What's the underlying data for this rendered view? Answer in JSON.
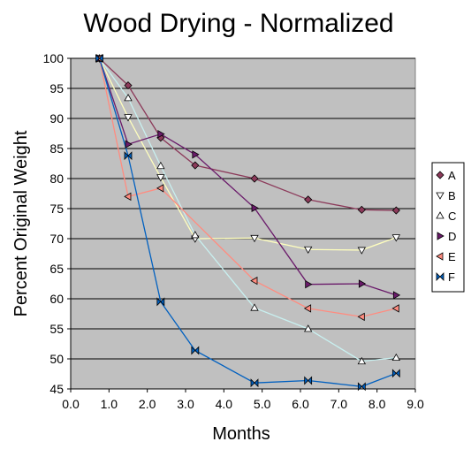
{
  "chart_data": {
    "type": "line",
    "title": "Wood Drying - Normalized",
    "xlabel": "Months",
    "ylabel": "Percent Original Weight",
    "xlim": [
      0.0,
      9.0
    ],
    "ylim": [
      45,
      100
    ],
    "x_ticks": [
      "0.0",
      "1.0",
      "2.0",
      "3.0",
      "4.0",
      "5.0",
      "6.0",
      "7.0",
      "8.0",
      "9.0"
    ],
    "y_ticks": [
      "45",
      "50",
      "55",
      "60",
      "65",
      "70",
      "75",
      "80",
      "85",
      "90",
      "95",
      "100"
    ],
    "grid": "horizontal",
    "plot_background": "#c0c0c0",
    "legend_position": "right",
    "series": [
      {
        "name": "A",
        "color": "#8c3a5a",
        "marker": "diamond",
        "x": [
          0.75,
          1.5,
          2.35,
          3.25,
          4.8,
          6.2,
          7.6,
          8.5
        ],
        "y": [
          100,
          95.5,
          86.8,
          82.2,
          80.0,
          76.5,
          74.8,
          74.7
        ]
      },
      {
        "name": "B",
        "color": "#ffffbe",
        "marker": "triangle-down",
        "x": [
          0.75,
          1.5,
          2.35,
          3.25,
          4.8,
          6.2,
          7.6,
          8.5
        ],
        "y": [
          100,
          90.2,
          80.2,
          70.0,
          70.1,
          68.2,
          68.1,
          70.2
        ]
      },
      {
        "name": "C",
        "color": "#c8f0f0",
        "marker": "triangle-up",
        "x": [
          0.75,
          1.5,
          2.35,
          3.25,
          4.8,
          6.2,
          7.6,
          8.5
        ],
        "y": [
          100,
          93.4,
          82.1,
          70.6,
          58.5,
          55.0,
          49.6,
          50.2
        ]
      },
      {
        "name": "D",
        "color": "#6a1a6a",
        "marker": "triangle-right",
        "x": [
          0.75,
          1.5,
          2.35,
          3.25,
          4.8,
          6.2,
          7.6,
          8.5
        ],
        "y": [
          100,
          85.7,
          87.4,
          84.0,
          75.1,
          62.4,
          62.5,
          60.6
        ]
      },
      {
        "name": "E",
        "color": "#ff8c80",
        "marker": "triangle-left",
        "x": [
          0.75,
          1.5,
          2.35,
          4.8,
          6.2,
          7.6,
          8.5
        ],
        "y": [
          100,
          77.0,
          78.4,
          63.0,
          58.4,
          57.0,
          58.4
        ]
      },
      {
        "name": "F",
        "color": "#0060c0",
        "marker": "bowtie",
        "x": [
          0.75,
          1.5,
          2.35,
          3.25,
          4.8,
          6.2,
          7.6,
          8.5
        ],
        "y": [
          100,
          83.8,
          59.5,
          51.4,
          46.0,
          46.4,
          45.4,
          47.6
        ]
      }
    ]
  }
}
